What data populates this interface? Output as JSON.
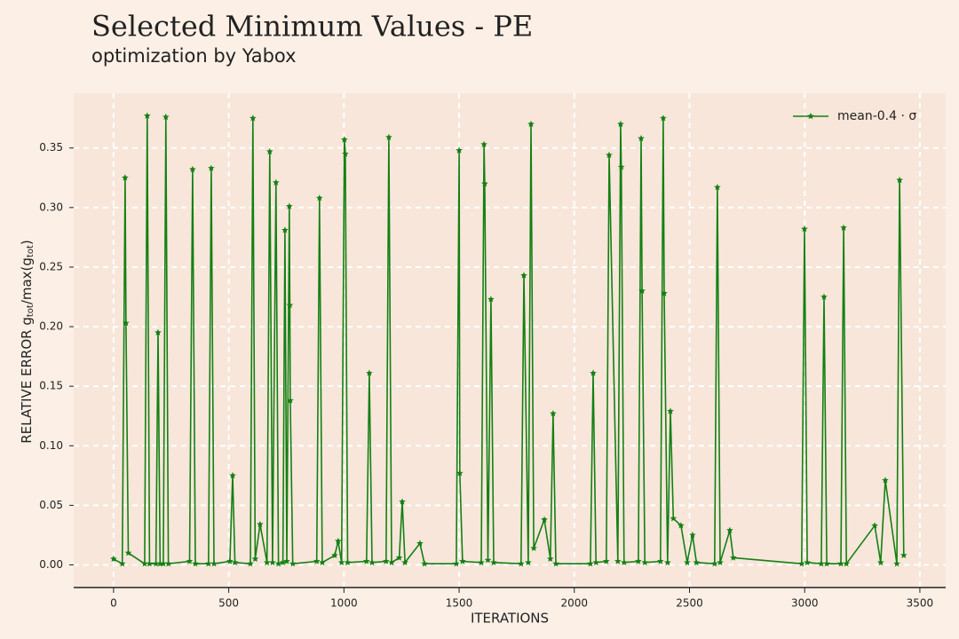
{
  "chart_data": {
    "type": "line",
    "title": "Selected Minimum Values - PE",
    "subtitle": "optimization by Yabox",
    "xlabel": "ITERATIONS",
    "ylabel": [
      "RELATIVE ERROR g",
      "tot",
      "/max(g",
      "tot",
      ")"
    ],
    "x": [
      0,
      38,
      50,
      54,
      64,
      135,
      146,
      156,
      184,
      193,
      202,
      216,
      227,
      238,
      330,
      343,
      355,
      412,
      424,
      436,
      505,
      517,
      527,
      594,
      605,
      615,
      636,
      666,
      678,
      690,
      705,
      716,
      735,
      744,
      752,
      763,
      765,
      767,
      778,
      882,
      894,
      906,
      960,
      975,
      990,
      1002,
      1006,
      1016,
      1098,
      1110,
      1122,
      1183,
      1195,
      1207,
      1240,
      1253,
      1265,
      1330,
      1350,
      1488,
      1500,
      1503,
      1515,
      1596,
      1608,
      1611,
      1625,
      1638,
      1650,
      1769,
      1781,
      1800,
      1812,
      1824,
      1870,
      1896,
      1908,
      1920,
      2070,
      2082,
      2094,
      2139,
      2151,
      2189,
      2201,
      2204,
      2216,
      2278,
      2290,
      2294,
      2306,
      2374,
      2386,
      2390,
      2405,
      2417,
      2430,
      2463,
      2490,
      2513,
      2530,
      2609,
      2621,
      2633,
      2675,
      2690,
      2987,
      2999,
      3011,
      3072,
      3084,
      3096,
      3157,
      3169,
      3181,
      3304,
      3330,
      3350,
      3400,
      3412,
      3430
    ],
    "series": [
      {
        "name": "mean-0.4 · σ",
        "color": "#138013",
        "values": [
          0.005,
          0.001,
          0.325,
          0.203,
          0.01,
          0.001,
          0.377,
          0.001,
          0.001,
          0.195,
          0.001,
          0.001,
          0.376,
          0.001,
          0.003,
          0.332,
          0.001,
          0.001,
          0.333,
          0.001,
          0.003,
          0.075,
          0.002,
          0.001,
          0.375,
          0.005,
          0.034,
          0.002,
          0.347,
          0.002,
          0.321,
          0.001,
          0.002,
          0.281,
          0.003,
          0.301,
          0.218,
          0.138,
          0.001,
          0.003,
          0.308,
          0.002,
          0.008,
          0.02,
          0.002,
          0.357,
          0.345,
          0.002,
          0.003,
          0.161,
          0.002,
          0.003,
          0.359,
          0.002,
          0.006,
          0.053,
          0.002,
          0.018,
          0.001,
          0.001,
          0.348,
          0.077,
          0.003,
          0.002,
          0.353,
          0.32,
          0.004,
          0.223,
          0.002,
          0.001,
          0.243,
          0.002,
          0.37,
          0.014,
          0.038,
          0.005,
          0.127,
          0.001,
          0.001,
          0.161,
          0.002,
          0.003,
          0.344,
          0.003,
          0.37,
          0.334,
          0.002,
          0.003,
          0.358,
          0.23,
          0.002,
          0.003,
          0.375,
          0.228,
          0.002,
          0.129,
          0.039,
          0.033,
          0.002,
          0.025,
          0.002,
          0.001,
          0.317,
          0.002,
          0.029,
          0.006,
          0.001,
          0.282,
          0.002,
          0.001,
          0.225,
          0.001,
          0.001,
          0.283,
          0.001,
          0.033,
          0.002,
          0.071,
          0.001,
          0.323,
          0.008
        ]
      }
    ],
    "xlim": [
      -173,
      3612
    ],
    "ylim": [
      -0.019,
      0.396
    ],
    "xticks": [
      0,
      500,
      1000,
      1500,
      2000,
      2500,
      3000,
      3500
    ],
    "yticks": [
      {
        "value": 0,
        "label": "0.00"
      },
      {
        "value": 0.05,
        "label": "0.05"
      },
      {
        "value": 0.1,
        "label": "0.10"
      },
      {
        "value": 0.15,
        "label": "0.15"
      },
      {
        "value": 0.2,
        "label": "0.20"
      },
      {
        "value": 0.25,
        "label": "0.25"
      },
      {
        "value": 0.3,
        "label": "0.30"
      },
      {
        "value": 0.35,
        "label": "0.35"
      }
    ],
    "grid": true,
    "legend": "upper right"
  }
}
